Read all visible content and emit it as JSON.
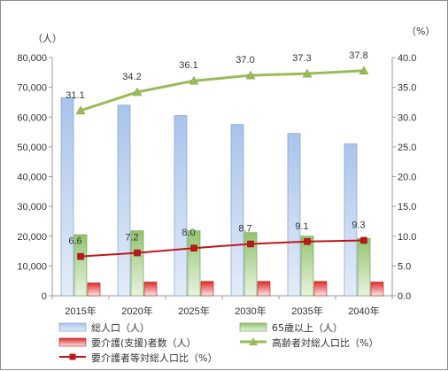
{
  "chart_data": {
    "type": "bar+line",
    "categories": [
      "2015年",
      "2020年",
      "2025年",
      "2030年",
      "2035年",
      "2040年"
    ],
    "left_axis": {
      "unit": "（人）",
      "ylim": [
        0,
        80000
      ],
      "ticks": [
        "0",
        "10,000",
        "20,000",
        "30,000",
        "40,000",
        "50,000",
        "60,000",
        "70,000",
        "80,000"
      ]
    },
    "right_axis": {
      "unit": "（%）",
      "ylim": [
        0,
        40
      ],
      "ticks": [
        "0.0",
        "5.0",
        "10.0",
        "15.0",
        "20.0",
        "25.0",
        "30.0",
        "35.0",
        "40.0"
      ]
    },
    "bar_series": [
      {
        "name": "総人口（人）",
        "values": [
          66500,
          64000,
          60500,
          57500,
          54500,
          51000
        ],
        "color": "#8db3e2"
      },
      {
        "name": "65歳以上（人）",
        "values": [
          20500,
          21800,
          21800,
          21200,
          20000,
          19200
        ],
        "color": "#8cc068"
      },
      {
        "name": "要介護(支援)者数（人）",
        "values": [
          4300,
          4600,
          4800,
          4800,
          4800,
          4600
        ],
        "color": "#e03030"
      }
    ],
    "line_series": [
      {
        "name": "高齢者対総人口比（%）",
        "values": [
          31.1,
          34.2,
          36.1,
          37.0,
          37.3,
          37.8
        ],
        "labels": [
          "31.1",
          "34.2",
          "36.1",
          "37.0",
          "37.3",
          "37.8"
        ],
        "color": "#9bbb59",
        "marker": "triangle"
      },
      {
        "name": "要介護者等対総人口比（%）",
        "values": [
          6.6,
          7.2,
          8.0,
          8.7,
          9.1,
          9.3
        ],
        "labels": [
          "6.6",
          "7.2",
          "8.0",
          "8.7",
          "9.1",
          "9.3"
        ],
        "color": "#c0161b",
        "marker": "square"
      }
    ],
    "legend": {
      "placement": "bottom",
      "items": [
        "総人口（人）",
        "65歳以上（人）",
        "要介護(支援)者数（人）",
        "高齢者対総人口比（%）",
        "要介護者等対総人口比（%）"
      ]
    },
    "grid": false
  }
}
